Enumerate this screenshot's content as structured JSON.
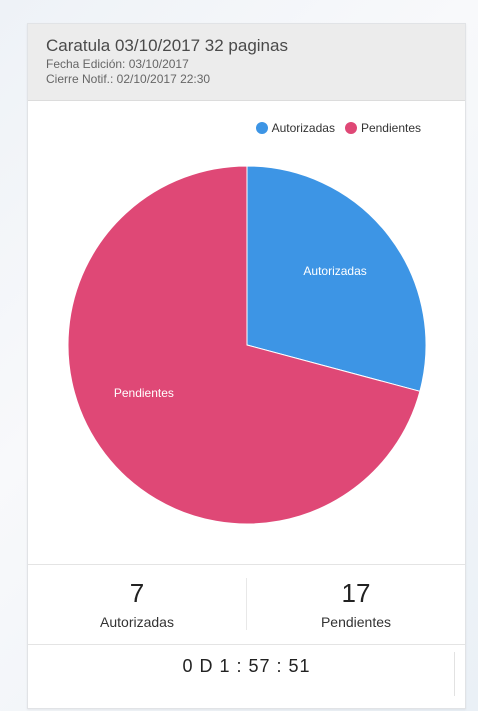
{
  "header": {
    "title": "Caratula 03/10/2017 32 paginas",
    "fecha_edicion": "Fecha Edición: 03/10/2017",
    "cierre_notif": "Cierre Notif.: 02/10/2017 22:30"
  },
  "legend": [
    {
      "label": "Autorizadas",
      "color": "#3d95e5"
    },
    {
      "label": "Pendientes",
      "color": "#df4876"
    }
  ],
  "chart_data": {
    "type": "pie",
    "categories": [
      "Autorizadas",
      "Pendientes"
    ],
    "values": [
      7,
      17
    ],
    "colors": [
      "#3d95e5",
      "#df4876"
    ],
    "legend_position": "top-right"
  },
  "stats": {
    "autorizadas_count": "7",
    "autorizadas_label": "Autorizadas",
    "pendientes_count": "17",
    "pendientes_label": "Pendientes"
  },
  "timer": "0 D 1 : 57 : 51"
}
